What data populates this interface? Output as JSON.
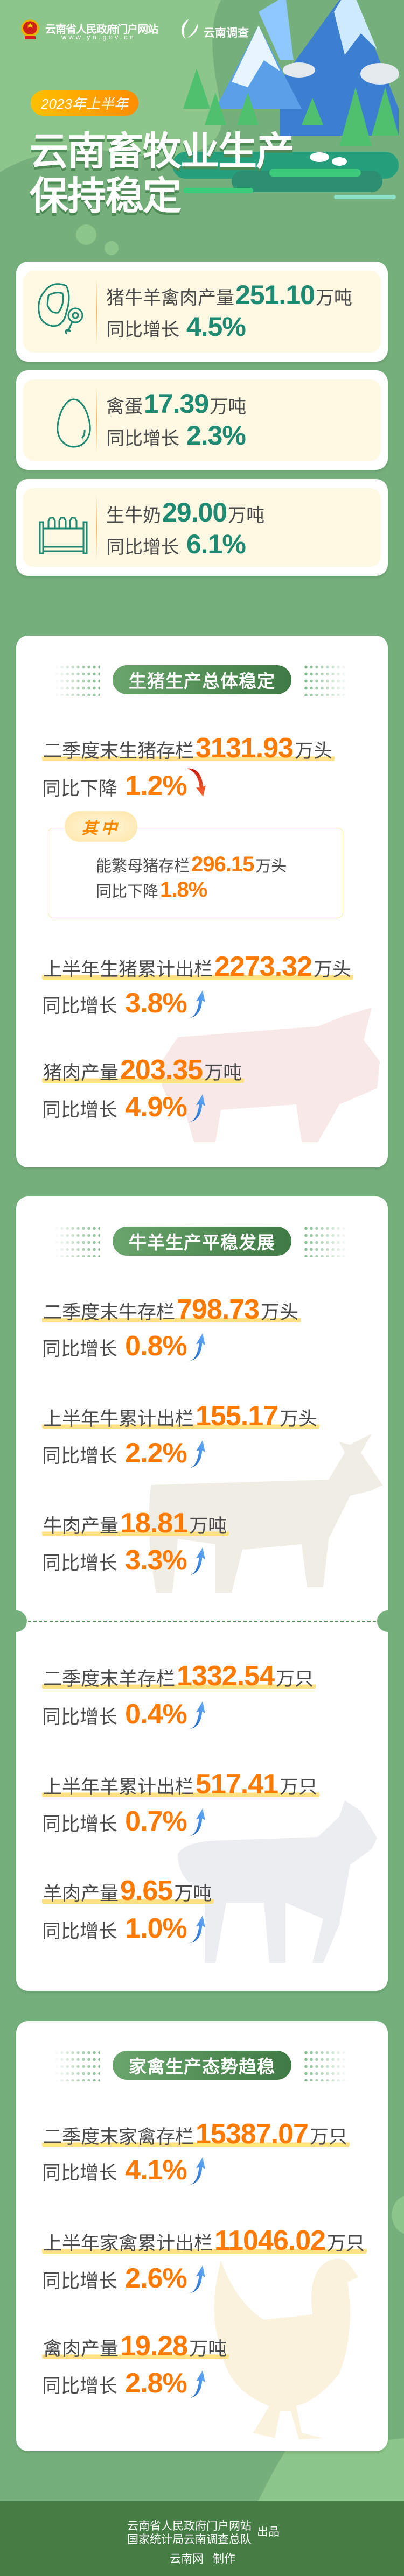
{
  "header": {
    "portal_name": "云南省人民政府门户网站",
    "portal_url": "www.yn.gov.cn",
    "survey_logo_text": "云南调查",
    "period_badge": "2023年上半年",
    "title_line1": "云南畜牧业生产",
    "title_line2": "保持稳定"
  },
  "summary": [
    {
      "icon": "meat-icon",
      "label": "猪牛羊禽肉产量",
      "value": "251.10",
      "unit": "万吨",
      "change_label": "同比增长",
      "change_value": "4.5%"
    },
    {
      "icon": "egg-icon",
      "label": "禽蛋",
      "value": "17.39",
      "unit": "万吨",
      "change_label": "同比增长",
      "change_value": "2.3%"
    },
    {
      "icon": "milk-bottles-icon",
      "label": "生牛奶",
      "value": "29.00",
      "unit": "万吨",
      "change_label": "同比增长",
      "change_value": "6.1%"
    }
  ],
  "pig": {
    "title": "生猪生产总体稳定",
    "rows": [
      {
        "label": "二季度末生猪存栏",
        "value": "3131.93",
        "unit": "万头",
        "change_label": "同比下降",
        "change_value": "1.2%",
        "trend": "down"
      },
      {
        "label": "上半年生猪累计出栏",
        "value": "2273.32",
        "unit": "万头",
        "change_label": "同比增长",
        "change_value": "3.8%",
        "trend": "up"
      },
      {
        "label": "猪肉产量",
        "value": "203.35",
        "unit": "万吨",
        "change_label": "同比增长",
        "change_value": "4.9%",
        "trend": "up"
      }
    ],
    "sub": {
      "badge": "其中",
      "label": "能繁母猪存栏",
      "value": "296.15",
      "unit": "万头",
      "change_label": "同比下降",
      "change_value": "1.8%"
    }
  },
  "cattle_sheep": {
    "title": "牛羊生产平稳发展",
    "cattle_rows": [
      {
        "label": "二季度末牛存栏",
        "value": "798.73",
        "unit": "万头",
        "change_label": "同比增长",
        "change_value": "0.8%",
        "trend": "up"
      },
      {
        "label": "上半年牛累计出栏",
        "value": "155.17",
        "unit": "万头",
        "change_label": "同比增长",
        "change_value": "2.2%",
        "trend": "up"
      },
      {
        "label": "牛肉产量",
        "value": "18.81",
        "unit": "万吨",
        "change_label": "同比增长",
        "change_value": "3.3%",
        "trend": "up"
      }
    ],
    "sheep_rows": [
      {
        "label": "二季度末羊存栏",
        "value": "1332.54",
        "unit": "万只",
        "change_label": "同比增长",
        "change_value": "0.4%",
        "trend": "up"
      },
      {
        "label": "上半年羊累计出栏",
        "value": "517.41",
        "unit": "万只",
        "change_label": "同比增长",
        "change_value": "0.7%",
        "trend": "up"
      },
      {
        "label": "羊肉产量",
        "value": "9.65",
        "unit": "万吨",
        "change_label": "同比增长",
        "change_value": "1.0%",
        "trend": "up"
      }
    ]
  },
  "poultry": {
    "title": "家禽生产态势趋稳",
    "rows": [
      {
        "label": "二季度末家禽存栏",
        "value": "15387.07",
        "unit": "万只",
        "change_label": "同比增长",
        "change_value": "4.1%",
        "trend": "up"
      },
      {
        "label": "上半年家禽累计出栏",
        "value": "11046.02",
        "unit": "万只",
        "change_label": "同比增长",
        "change_value": "2.6%",
        "trend": "up"
      },
      {
        "label": "禽肉产量",
        "value": "19.28",
        "unit": "万吨",
        "change_label": "同比增长",
        "change_value": "2.8%",
        "trend": "up"
      }
    ]
  },
  "footer": {
    "producer1": "云南省人民政府门户网站",
    "producer2": "国家统计局云南调查总队",
    "produced_label": "出品",
    "maker": "云南网",
    "made_label": "制作"
  },
  "colors": {
    "background": "#75b07c",
    "accent_teal": "#1e8a72",
    "accent_orange": "#ff7a00",
    "highlight": "#ffe083",
    "footer": "#457d45"
  }
}
